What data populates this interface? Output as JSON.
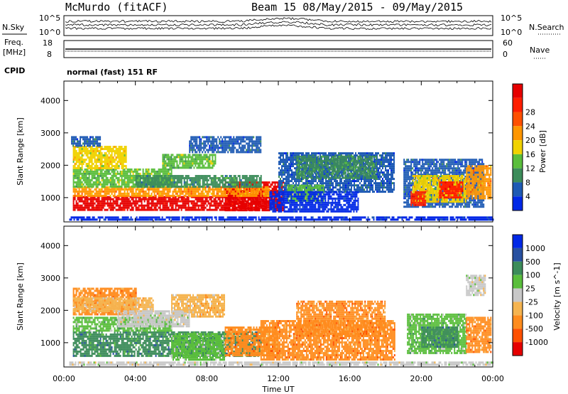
{
  "header": {
    "station": "McMurdo (fitACF)",
    "beam_info": "Beam 15 08/May/2015 - 09/May/2015"
  },
  "noise_panel": {
    "left_label": "N.Sky",
    "right_label": "N.Search",
    "left_ticks": [
      "10^5",
      "10^0"
    ],
    "right_ticks": [
      "10^5",
      "10^0"
    ]
  },
  "freq_panel": {
    "left_label_line1": "Freq.",
    "left_label_line2": "[MHz]",
    "right_label": "Nave",
    "left_ticks": [
      "18",
      "8"
    ],
    "right_ticks": [
      "60",
      "0"
    ]
  },
  "cpid": {
    "label": "CPID",
    "text": "normal (fast) 151 RF"
  },
  "colors": {
    "power_scale": [
      "#0028e6",
      "#1e5ab4",
      "#3c8c5a",
      "#5abe3c",
      "#f0d200",
      "#ff9600",
      "#ff5000",
      "#ff1e00",
      "#e60000"
    ],
    "velocity_scale": [
      "#e60000",
      "#ff5000",
      "#ff8c1e",
      "#f5b450",
      "#c8c8c8",
      "#5abe3c",
      "#3c8c5a",
      "#2850a0",
      "#0028e6"
    ]
  },
  "chart_data": [
    {
      "type": "heatmap",
      "name": "power",
      "ylabel": "Slant Range [km]",
      "xlabel": "",
      "x_ticks": [
        "00:00",
        "04:00",
        "08:00",
        "12:00",
        "16:00",
        "20:00",
        "00:00"
      ],
      "y_ticks": [
        1000,
        2000,
        3000,
        4000
      ],
      "ylim": [
        250,
        4600
      ],
      "xlim_hours": [
        0,
        24
      ],
      "colorbar": {
        "label": "Power [dB]",
        "ticks": [
          4,
          8,
          12,
          16,
          20,
          24,
          28
        ]
      },
      "regions": [
        {
          "t": [
            0.5,
            11.5
          ],
          "r": [
            600,
            1050
          ],
          "level": 8
        },
        {
          "t": [
            9.0,
            12.3
          ],
          "r": [
            600,
            1500
          ],
          "level": 8
        },
        {
          "t": [
            0.5,
            11.5
          ],
          "r": [
            1050,
            1350
          ],
          "level": 5
        },
        {
          "t": [
            0.5,
            6.0
          ],
          "r": [
            1350,
            1900
          ],
          "level": 3
        },
        {
          "t": [
            0.5,
            3.5
          ],
          "r": [
            1900,
            2600
          ],
          "level": 4
        },
        {
          "t": [
            0.4,
            2.0
          ],
          "r": [
            2600,
            2900
          ],
          "level": 1
        },
        {
          "t": [
            5.5,
            8.5
          ],
          "r": [
            1950,
            2350
          ],
          "level": 3
        },
        {
          "t": [
            4.0,
            11.0
          ],
          "r": [
            1350,
            1700
          ],
          "level": 2
        },
        {
          "t": [
            7.0,
            11.0
          ],
          "r": [
            2400,
            2900
          ],
          "level": 1
        },
        {
          "t": [
            12.0,
            18.5
          ],
          "r": [
            1200,
            2400
          ],
          "level": 1
        },
        {
          "t": [
            13.0,
            17.5
          ],
          "r": [
            1600,
            2300
          ],
          "level": 2
        },
        {
          "t": [
            12.5,
            14.5
          ],
          "r": [
            900,
            1400
          ],
          "level": 3
        },
        {
          "t": [
            19.0,
            23.5
          ],
          "r": [
            700,
            2200
          ],
          "level": 1
        },
        {
          "t": [
            19.5,
            22.5
          ],
          "r": [
            900,
            1700
          ],
          "level": 4
        },
        {
          "t": [
            21.0,
            22.3
          ],
          "r": [
            1000,
            1500
          ],
          "level": 7
        },
        {
          "t": [
            19.4,
            20.2
          ],
          "r": [
            800,
            1200
          ],
          "level": 7
        },
        {
          "t": [
            22.5,
            23.9
          ],
          "r": [
            1000,
            2000
          ],
          "level": 5
        },
        {
          "t": [
            11.5,
            16.5
          ],
          "r": [
            600,
            1200
          ],
          "level": 0
        },
        {
          "t": [
            0.3,
            24.0
          ],
          "r": [
            300,
            420
          ],
          "level": 0
        }
      ]
    },
    {
      "type": "heatmap",
      "name": "velocity",
      "ylabel": "Slant Range [km]",
      "xlabel": "Time UT",
      "x_ticks": [
        "00:00",
        "04:00",
        "08:00",
        "12:00",
        "16:00",
        "20:00",
        "00:00"
      ],
      "y_ticks": [
        1000,
        2000,
        3000,
        4000
      ],
      "ylim": [
        250,
        4600
      ],
      "xlim_hours": [
        0,
        24
      ],
      "colorbar": {
        "label": "Velocity [m s^-1]",
        "ticks": [
          "1000",
          "500",
          "100",
          "25",
          "-25",
          "-100",
          "-500",
          "-1000"
        ]
      },
      "regions": [
        {
          "t": [
            0.5,
            11.0
          ],
          "r": [
            600,
            1350
          ],
          "level": 6
        },
        {
          "t": [
            6.0,
            9.0
          ],
          "r": [
            500,
            1300
          ],
          "level": 5
        },
        {
          "t": [
            0.5,
            6.0
          ],
          "r": [
            1350,
            1800
          ],
          "level": 5
        },
        {
          "t": [
            0.5,
            4.0
          ],
          "r": [
            1900,
            2700
          ],
          "level": 2
        },
        {
          "t": [
            0.5,
            5.0
          ],
          "r": [
            2000,
            2400
          ],
          "level": 3
        },
        {
          "t": [
            6.0,
            9.0
          ],
          "r": [
            1800,
            2500
          ],
          "level": 3
        },
        {
          "t": [
            3.0,
            7.0
          ],
          "r": [
            1500,
            2000
          ],
          "level": 4
        },
        {
          "t": [
            9.0,
            12.0
          ],
          "r": [
            600,
            1500
          ],
          "level": 2
        },
        {
          "t": [
            11.0,
            18.5
          ],
          "r": [
            500,
            1700
          ],
          "level": 2
        },
        {
          "t": [
            13.0,
            18.0
          ],
          "r": [
            1200,
            2300
          ],
          "level": 2
        },
        {
          "t": [
            19.2,
            22.5
          ],
          "r": [
            700,
            1900
          ],
          "level": 5
        },
        {
          "t": [
            20.0,
            22.0
          ],
          "r": [
            900,
            1500
          ],
          "level": 6
        },
        {
          "t": [
            22.5,
            23.9
          ],
          "r": [
            700,
            1800
          ],
          "level": 2
        },
        {
          "t": [
            22.5,
            23.6
          ],
          "r": [
            2500,
            3100
          ],
          "level": 4
        },
        {
          "t": [
            0.3,
            24.0
          ],
          "r": [
            300,
            420
          ],
          "level": 4
        }
      ]
    }
  ]
}
